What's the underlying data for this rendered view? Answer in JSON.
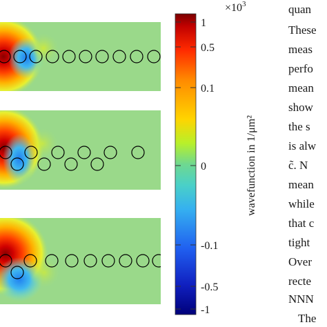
{
  "colorbar": {
    "multiplier_base": "×10",
    "multiplier_exp": "3",
    "label": "wavefunction in 1/μm²",
    "ticks": [
      "1",
      "0.5",
      "0.1",
      "0",
      "-0.1",
      "-0.5",
      "-1"
    ],
    "colors": [
      "#7a0000",
      "#c00000",
      "#ff2a00",
      "#ff8a00",
      "#ffd400",
      "#b8f02a",
      "#6fd890",
      "#4ad0c8",
      "#35b0f0",
      "#2060f0",
      "#1020c0",
      "#00007a"
    ]
  },
  "panels": [
    {
      "layout": "straight chain",
      "sites": 10
    },
    {
      "layout": "zigzag chain",
      "sites": 10
    },
    {
      "layout": "zigzag chain",
      "sites": 10
    }
  ],
  "side_text_lines": [
    "quan",
    "These",
    "meas",
    "perfo",
    "mean",
    "show",
    "the s",
    "is alw",
    "c̃.  N",
    "mean",
    "while",
    "that c",
    "tight",
    "Over",
    "recte",
    "NNN",
    "The"
  ]
}
